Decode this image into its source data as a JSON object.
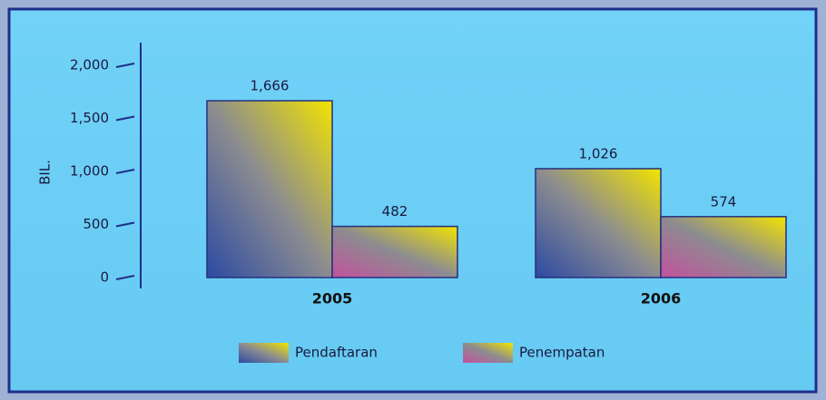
{
  "chart_data": {
    "type": "bar",
    "y_label": "BIL.",
    "categories": [
      "2005",
      "2006"
    ],
    "series": [
      {
        "name": "Pendaftaran",
        "color": "#2c4aa2",
        "values": [
          1666,
          1026
        ],
        "value_labels": [
          "1,666",
          "1,026"
        ]
      },
      {
        "name": "Penempatan",
        "color": "#c2529e",
        "values": [
          482,
          574
        ]
      }
    ],
    "ylim": [
      0,
      2000
    ],
    "yticks": [
      0,
      500,
      {
        "value": 1000,
        "label": "1,000"
      },
      {
        "value": 1500,
        "label": "1,500"
      },
      {
        "value": 2000,
        "label": "2,000"
      }
    ]
  }
}
